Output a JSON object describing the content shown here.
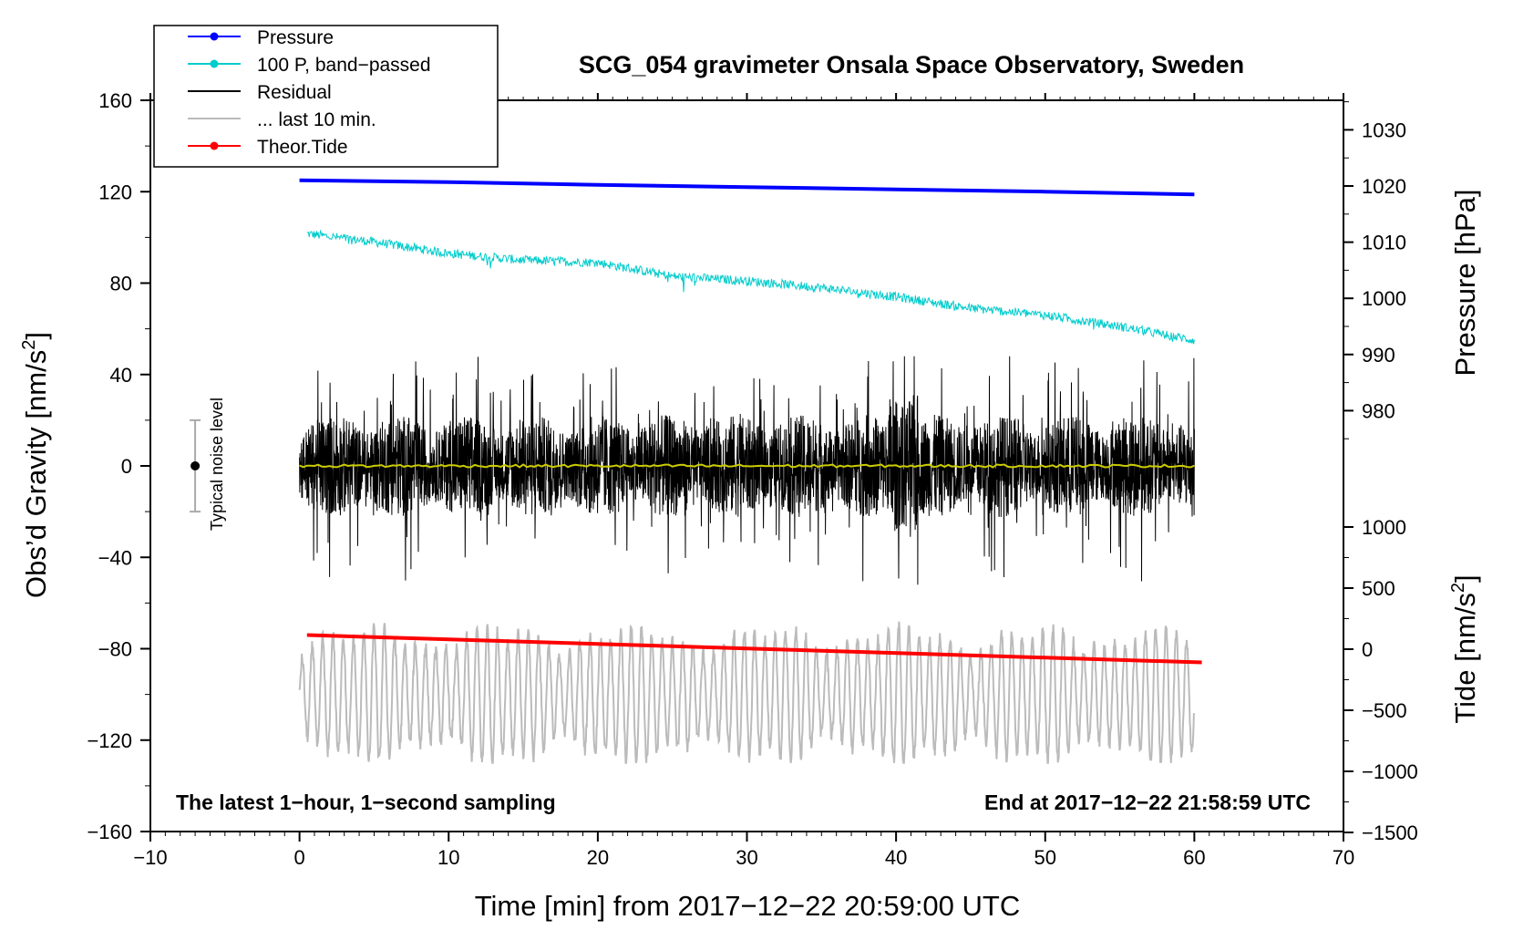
{
  "chart_data": {
    "type": "line",
    "title": "SCG_054 gravimeter Onsala Space Observatory, Sweden",
    "xlabel": "Time [min] from 2017−12−22 20:59:00 UTC",
    "ylabel_main": "Obs’d Gravity [nm/s",
    "ylabel_main_sup": "2",
    "ylabel_main_end": "]",
    "ylabel_pressure": "Pressure [hPa]",
    "ylabel_tide": "Tide [nm/s",
    "ylabel_tide_sup": "2",
    "ylabel_tide_end": "]",
    "xlim": [
      -10,
      70
    ],
    "ylim": [
      -160,
      160
    ],
    "pressure_axis": {
      "ticks": [
        980,
        990,
        1000,
        1010,
        1020,
        1030
      ],
      "labels": [
        "980",
        "990",
        "1000",
        "1010",
        "1020",
        "1030"
      ]
    },
    "tide_axis": {
      "ticks": [
        -1500,
        -1000,
        -500,
        0,
        500,
        1000
      ],
      "labels": [
        "−1500",
        "−1000",
        "−500",
        "0",
        "500",
        "1000"
      ]
    },
    "x_ticks": [
      -10,
      0,
      10,
      20,
      30,
      40,
      50,
      60,
      70
    ],
    "x_tick_labels": [
      "−10",
      "0",
      "10",
      "20",
      "30",
      "40",
      "50",
      "60",
      "70"
    ],
    "y_ticks": [
      -160,
      -120,
      -80,
      -40,
      0,
      40,
      80,
      120,
      160
    ],
    "y_tick_labels": [
      "−160",
      "−120",
      "−80",
      "−40",
      "0",
      "40",
      "80",
      "120",
      "160"
    ],
    "annotation_left": "The latest 1−hour, 1−second sampling",
    "annotation_right": "End at 2017−12−22 21:58:59 UTC",
    "noise_label": "Typical noise level",
    "noise_bar": {
      "x": -7,
      "center": 0,
      "half_range": 20
    },
    "legend": [
      {
        "label": "Pressure",
        "color": "#0000ff",
        "marker": true
      },
      {
        "label": "100 P, band−passed",
        "color": "#00cccc",
        "marker": true
      },
      {
        "label": "Residual",
        "color": "#000000",
        "marker": false
      },
      {
        "label": "... last 10 min.",
        "color": "#bbbbbb",
        "marker": false
      },
      {
        "label": "Theor.Tide",
        "color": "#ff0000",
        "marker": true
      }
    ],
    "series": [
      {
        "name": "Pressure",
        "color": "#0000ff",
        "x": [
          0,
          10,
          20,
          30,
          40,
          50,
          60
        ],
        "values_pressure_hPa": [
          1021.0,
          1020.7,
          1020.2,
          1019.8,
          1019.4,
          1019.0,
          1018.5
        ]
      },
      {
        "name": "100 P, band−passed",
        "color": "#00cccc",
        "x": [
          0,
          5,
          10,
          15,
          20,
          25,
          30,
          35,
          40,
          45,
          50,
          55,
          60
        ],
        "values": [
          102,
          98,
          93,
          90,
          89,
          83,
          81,
          78,
          74,
          69,
          66,
          61,
          55
        ],
        "noise_amplitude": 2
      },
      {
        "name": "Residual",
        "color": "#000000",
        "x_range": [
          0,
          60
        ],
        "mean": 0,
        "typical_amplitude": 20,
        "min": -52,
        "max": 48
      },
      {
        "name": "Residual mean",
        "color": "#cccc00",
        "x_range": [
          0,
          60
        ],
        "values": [
          0,
          0
        ]
      },
      {
        "name": "... last 10 min.",
        "color": "#bbbbbb",
        "x_range": [
          0,
          60
        ],
        "center": -100,
        "min": -130,
        "max": -60
      },
      {
        "name": "Theor.Tide",
        "color": "#ff0000",
        "x": [
          0.5,
          60.5
        ],
        "values": [
          -74,
          -86
        ]
      }
    ]
  }
}
